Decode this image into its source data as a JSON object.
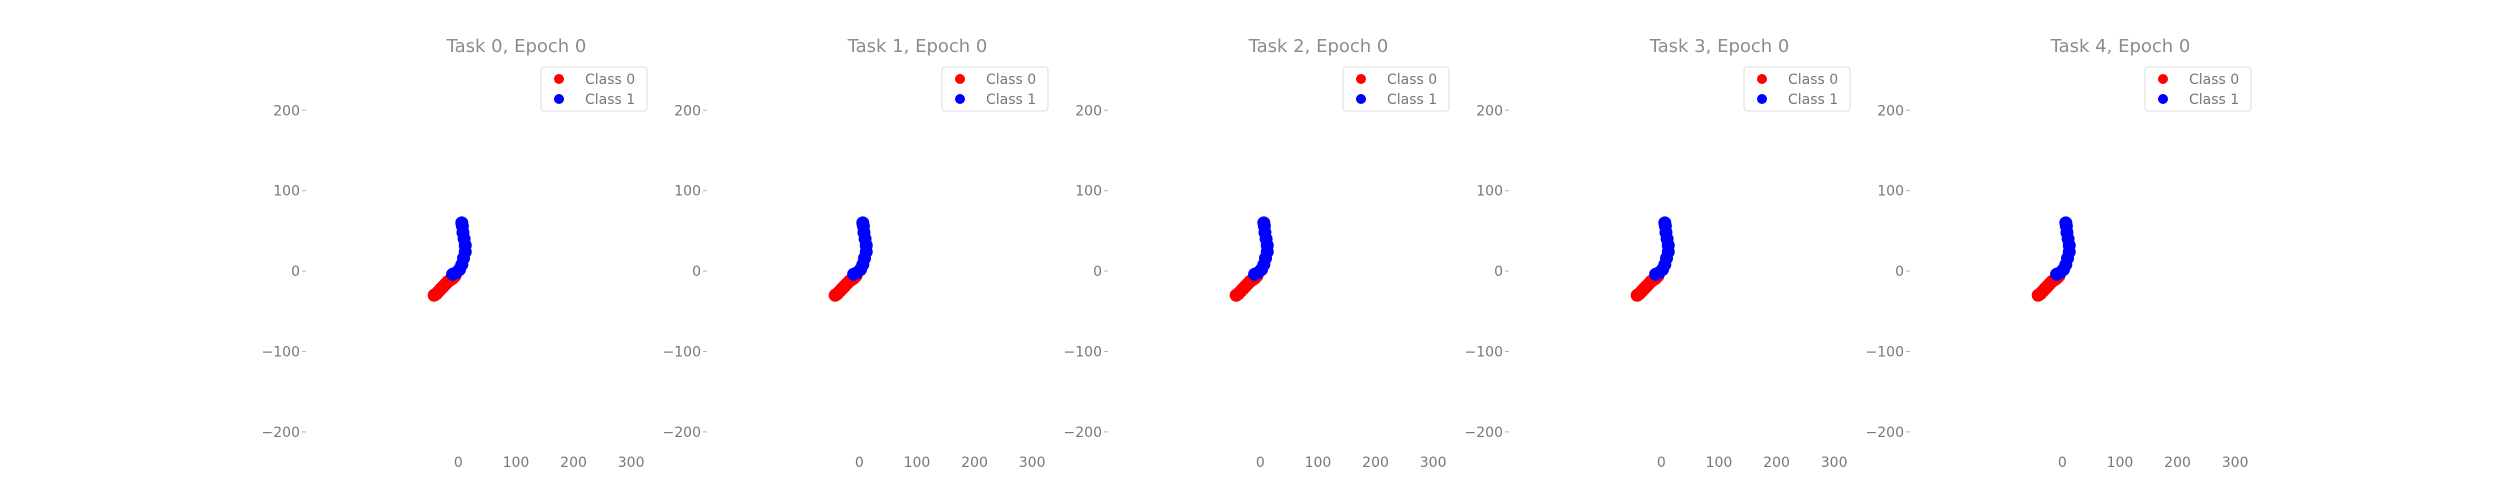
{
  "chart_data": [
    {
      "type": "scatter",
      "title": "Task 0, Epoch 0",
      "xlabel": "",
      "ylabel": "",
      "xlim": [
        -110,
        305
      ],
      "ylim": [
        -220,
        265
      ],
      "xticks": [
        0,
        100,
        200,
        300
      ],
      "yticks": [
        -200,
        -100,
        0,
        100,
        200
      ],
      "xtick_labels": [
        "0",
        "100",
        "200",
        "300"
      ],
      "ytick_labels": [
        "−200",
        "−100",
        "0",
        "100",
        "200"
      ],
      "grid": false,
      "legend_position": "top-right",
      "series": [
        {
          "name": "Class 0",
          "color": "#ff0000",
          "points": [
            [
              -42,
              -30
            ],
            [
              -38,
              -28
            ],
            [
              -34,
              -25
            ],
            [
              -30,
              -22
            ],
            [
              -26,
              -19
            ],
            [
              -22,
              -16
            ],
            [
              -18,
              -13
            ],
            [
              -14,
              -11
            ],
            [
              -10,
              -9
            ],
            [
              -6,
              -6
            ]
          ]
        },
        {
          "name": "Class 1",
          "color": "#0000ff",
          "points": [
            [
              -10,
              -4
            ],
            [
              -4,
              -2
            ],
            [
              2,
              2
            ],
            [
              6,
              8
            ],
            [
              9,
              16
            ],
            [
              12,
              24
            ],
            [
              12,
              32
            ],
            [
              10,
              40
            ],
            [
              8,
              48
            ],
            [
              7,
              56
            ],
            [
              6,
              60
            ]
          ]
        }
      ]
    },
    {
      "type": "scatter",
      "title": "Task 1, Epoch 0",
      "xlabel": "",
      "ylabel": "",
      "xlim": [
        -110,
        305
      ],
      "ylim": [
        -220,
        265
      ],
      "xticks": [
        0,
        100,
        200,
        300
      ],
      "yticks": [
        -200,
        -100,
        0,
        100,
        200
      ],
      "xtick_labels": [
        "0",
        "100",
        "200",
        "300"
      ],
      "ytick_labels": [
        "−200",
        "−100",
        "0",
        "100",
        "200"
      ],
      "grid": false,
      "legend_position": "top-right",
      "series": [
        {
          "name": "Class 0",
          "color": "#ff0000",
          "points": [
            [
              -42,
              -30
            ],
            [
              -38,
              -28
            ],
            [
              -34,
              -25
            ],
            [
              -30,
              -22
            ],
            [
              -26,
              -19
            ],
            [
              -22,
              -16
            ],
            [
              -18,
              -13
            ],
            [
              -14,
              -11
            ],
            [
              -10,
              -9
            ],
            [
              -6,
              -6
            ]
          ]
        },
        {
          "name": "Class 1",
          "color": "#0000ff",
          "points": [
            [
              -10,
              -4
            ],
            [
              -4,
              -2
            ],
            [
              2,
              2
            ],
            [
              6,
              8
            ],
            [
              9,
              16
            ],
            [
              12,
              24
            ],
            [
              12,
              32
            ],
            [
              10,
              40
            ],
            [
              8,
              48
            ],
            [
              7,
              56
            ],
            [
              6,
              60
            ]
          ]
        }
      ]
    },
    {
      "type": "scatter",
      "title": "Task 2, Epoch 0",
      "xlabel": "",
      "ylabel": "",
      "xlim": [
        -110,
        305
      ],
      "ylim": [
        -220,
        265
      ],
      "xticks": [
        0,
        100,
        200,
        300
      ],
      "yticks": [
        -200,
        -100,
        0,
        100,
        200
      ],
      "xtick_labels": [
        "0",
        "100",
        "200",
        "300"
      ],
      "ytick_labels": [
        "−200",
        "−100",
        "0",
        "100",
        "200"
      ],
      "grid": false,
      "legend_position": "top-right",
      "series": [
        {
          "name": "Class 0",
          "color": "#ff0000",
          "points": [
            [
              -42,
              -30
            ],
            [
              -38,
              -28
            ],
            [
              -34,
              -25
            ],
            [
              -30,
              -22
            ],
            [
              -26,
              -19
            ],
            [
              -22,
              -16
            ],
            [
              -18,
              -13
            ],
            [
              -14,
              -11
            ],
            [
              -10,
              -9
            ],
            [
              -6,
              -6
            ]
          ]
        },
        {
          "name": "Class 1",
          "color": "#0000ff",
          "points": [
            [
              -10,
              -4
            ],
            [
              -4,
              -2
            ],
            [
              2,
              2
            ],
            [
              6,
              8
            ],
            [
              9,
              16
            ],
            [
              12,
              24
            ],
            [
              12,
              32
            ],
            [
              10,
              40
            ],
            [
              8,
              48
            ],
            [
              7,
              56
            ],
            [
              6,
              60
            ]
          ]
        }
      ]
    },
    {
      "type": "scatter",
      "title": "Task 3, Epoch 0",
      "xlabel": "",
      "ylabel": "",
      "xlim": [
        -110,
        305
      ],
      "ylim": [
        -220,
        265
      ],
      "xticks": [
        0,
        100,
        200,
        300
      ],
      "yticks": [
        -200,
        -100,
        0,
        100,
        200
      ],
      "xtick_labels": [
        "0",
        "100",
        "200",
        "300"
      ],
      "ytick_labels": [
        "−200",
        "−100",
        "0",
        "100",
        "200"
      ],
      "grid": false,
      "legend_position": "top-right",
      "series": [
        {
          "name": "Class 0",
          "color": "#ff0000",
          "points": [
            [
              -42,
              -30
            ],
            [
              -38,
              -28
            ],
            [
              -34,
              -25
            ],
            [
              -30,
              -22
            ],
            [
              -26,
              -19
            ],
            [
              -22,
              -16
            ],
            [
              -18,
              -13
            ],
            [
              -14,
              -11
            ],
            [
              -10,
              -9
            ],
            [
              -6,
              -6
            ]
          ]
        },
        {
          "name": "Class 1",
          "color": "#0000ff",
          "points": [
            [
              -10,
              -4
            ],
            [
              -4,
              -2
            ],
            [
              2,
              2
            ],
            [
              6,
              8
            ],
            [
              9,
              16
            ],
            [
              12,
              24
            ],
            [
              12,
              32
            ],
            [
              10,
              40
            ],
            [
              8,
              48
            ],
            [
              7,
              56
            ],
            [
              6,
              60
            ]
          ]
        }
      ]
    },
    {
      "type": "scatter",
      "title": "Task 4, Epoch 0",
      "xlabel": "",
      "ylabel": "",
      "xlim": [
        -110,
        305
      ],
      "ylim": [
        -220,
        265
      ],
      "xticks": [
        0,
        100,
        200,
        300
      ],
      "yticks": [
        -200,
        -100,
        0,
        100,
        200
      ],
      "xtick_labels": [
        "0",
        "100",
        "200",
        "300"
      ],
      "ytick_labels": [
        "−200",
        "−100",
        "0",
        "100",
        "200"
      ],
      "grid": false,
      "legend_position": "top-right",
      "series": [
        {
          "name": "Class 0",
          "color": "#ff0000",
          "points": [
            [
              -42,
              -30
            ],
            [
              -38,
              -28
            ],
            [
              -34,
              -25
            ],
            [
              -30,
              -22
            ],
            [
              -26,
              -19
            ],
            [
              -22,
              -16
            ],
            [
              -18,
              -13
            ],
            [
              -14,
              -11
            ],
            [
              -10,
              -9
            ],
            [
              -6,
              -6
            ]
          ]
        },
        {
          "name": "Class 1",
          "color": "#0000ff",
          "points": [
            [
              -10,
              -4
            ],
            [
              -4,
              -2
            ],
            [
              2,
              2
            ],
            [
              6,
              8
            ],
            [
              9,
              16
            ],
            [
              12,
              24
            ],
            [
              12,
              32
            ],
            [
              10,
              40
            ],
            [
              8,
              48
            ],
            [
              7,
              56
            ],
            [
              6,
              60
            ]
          ]
        }
      ]
    }
  ]
}
